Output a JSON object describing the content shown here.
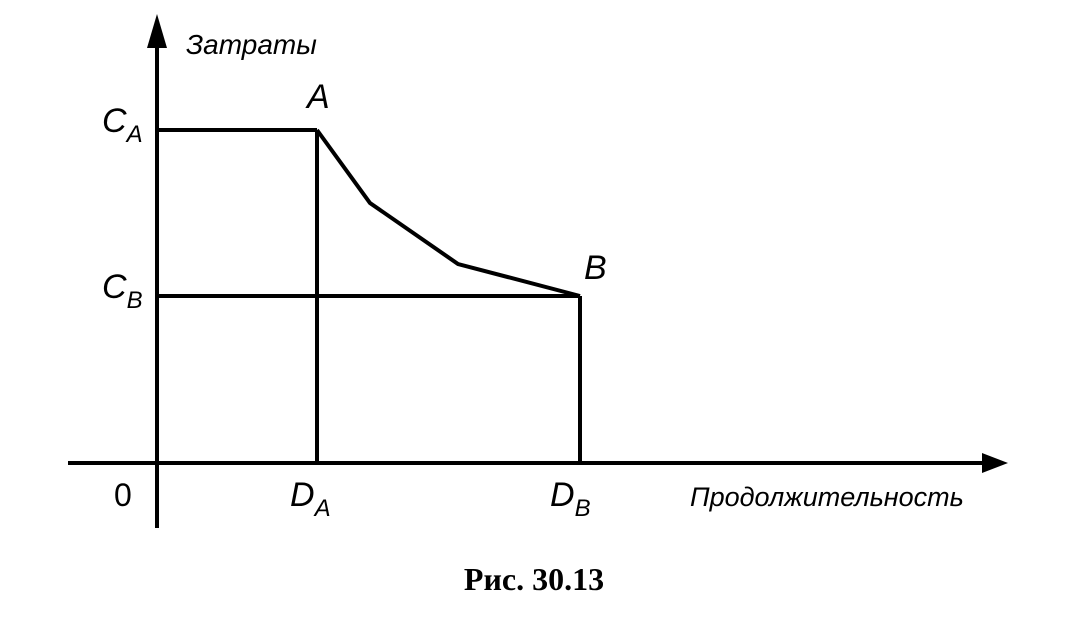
{
  "axes": {
    "y_label": "Затраты",
    "x_label": "Продолжительность",
    "origin": "0"
  },
  "y_ticks": [
    {
      "main": "C",
      "sub": "A"
    },
    {
      "main": "C",
      "sub": "B"
    }
  ],
  "x_ticks": [
    {
      "main": "D",
      "sub": "A"
    },
    {
      "main": "D",
      "sub": "B"
    }
  ],
  "points": [
    "A",
    "B"
  ],
  "caption": "Рис. 30.13"
}
